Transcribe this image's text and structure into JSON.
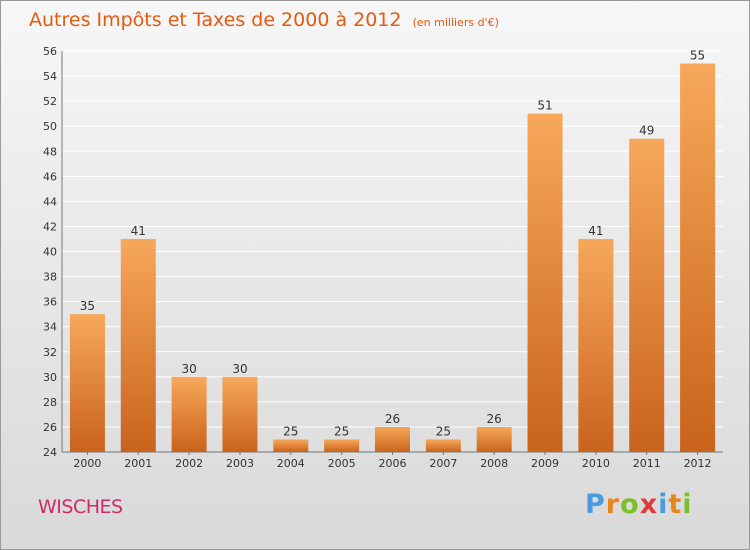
{
  "header": {
    "title": "Autres Impôts et Taxes de 2000 à 2012",
    "subtitle": "(en milliers d'€)"
  },
  "footer": {
    "place": "WISCHES",
    "logo_text": "Proxiti",
    "logo_colors": [
      "#4a9be0",
      "#e8861b",
      "#7bbf2a",
      "#e03a3a",
      "#4a9be0",
      "#e8861b",
      "#7bbf2a"
    ]
  },
  "colors": {
    "title": "#e35a12",
    "place": "#cc2b6a",
    "bar_light": "#f7a85a",
    "bar_dark": "#c9631b"
  },
  "chart_data": {
    "type": "bar",
    "categories": [
      "2000",
      "2001",
      "2002",
      "2003",
      "2004",
      "2005",
      "2006",
      "2007",
      "2008",
      "2009",
      "2010",
      "2011",
      "2012"
    ],
    "values": [
      35,
      41,
      30,
      30,
      25,
      25,
      26,
      25,
      26,
      51,
      41,
      49,
      55
    ],
    "ylim": [
      24,
      56
    ],
    "yticks": [
      24,
      26,
      28,
      30,
      32,
      34,
      36,
      38,
      40,
      42,
      44,
      46,
      48,
      50,
      52,
      54,
      56
    ],
    "grid": true
  }
}
